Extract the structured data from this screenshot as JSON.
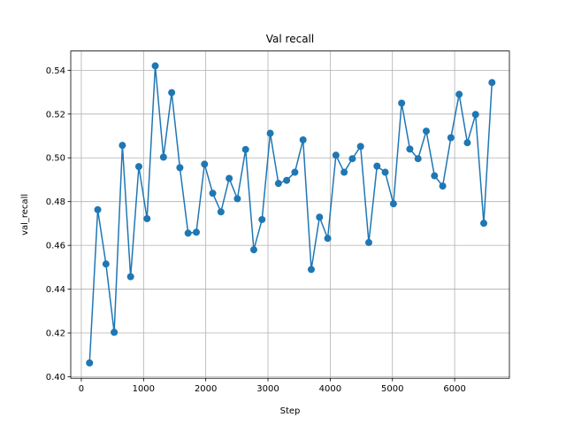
{
  "chart_data": {
    "type": "line",
    "title": "Val recall",
    "xlabel": "Step",
    "ylabel": "val_recall",
    "xlim": [
      -170,
      6880
    ],
    "ylim": [
      0.3993,
      0.5488
    ],
    "xticks": [
      0,
      1000,
      2000,
      3000,
      4000,
      5000,
      6000
    ],
    "xtick_labels": [
      "0",
      "1000",
      "2000",
      "3000",
      "4000",
      "5000",
      "6000"
    ],
    "yticks": [
      0.4,
      0.42,
      0.44,
      0.46,
      0.48,
      0.5,
      0.52,
      0.54
    ],
    "ytick_labels": [
      "0.40",
      "0.42",
      "0.44",
      "0.46",
      "0.48",
      "0.50",
      "0.52",
      "0.54"
    ],
    "grid": true,
    "legend": "none",
    "color": "#1f77b4",
    "marker": "circle",
    "series": [
      {
        "x": [
          132,
          264,
          396,
          528,
          660,
          792,
          924,
          1056,
          1188,
          1320,
          1452,
          1584,
          1716,
          1848,
          1980,
          2112,
          2244,
          2376,
          2508,
          2640,
          2772,
          2904,
          3036,
          3168,
          3300,
          3432,
          3564,
          3696,
          3828,
          3960,
          4092,
          4224,
          4356,
          4488,
          4620,
          4752,
          4884,
          5016,
          5148,
          5280,
          5412,
          5544,
          5676,
          5808,
          5940,
          6072,
          6204,
          6336,
          6468,
          6600
        ],
        "values": [
          0.4063,
          0.4763,
          0.4515,
          0.4203,
          0.5057,
          0.4457,
          0.496,
          0.4722,
          0.542,
          0.5003,
          0.5298,
          0.4955,
          0.4656,
          0.466,
          0.4971,
          0.4838,
          0.4753,
          0.4906,
          0.4813,
          0.5038,
          0.458,
          0.4718,
          0.5112,
          0.4883,
          0.4897,
          0.4934,
          0.5082,
          0.449,
          0.4729,
          0.4632,
          0.5012,
          0.4934,
          0.4996,
          0.5052,
          0.4613,
          0.4962,
          0.4934,
          0.479,
          0.525,
          0.504,
          0.4996,
          0.5122,
          0.4918,
          0.4871,
          0.5092,
          0.529,
          0.5069,
          0.5198,
          0.4701,
          0.5344
        ]
      }
    ]
  }
}
